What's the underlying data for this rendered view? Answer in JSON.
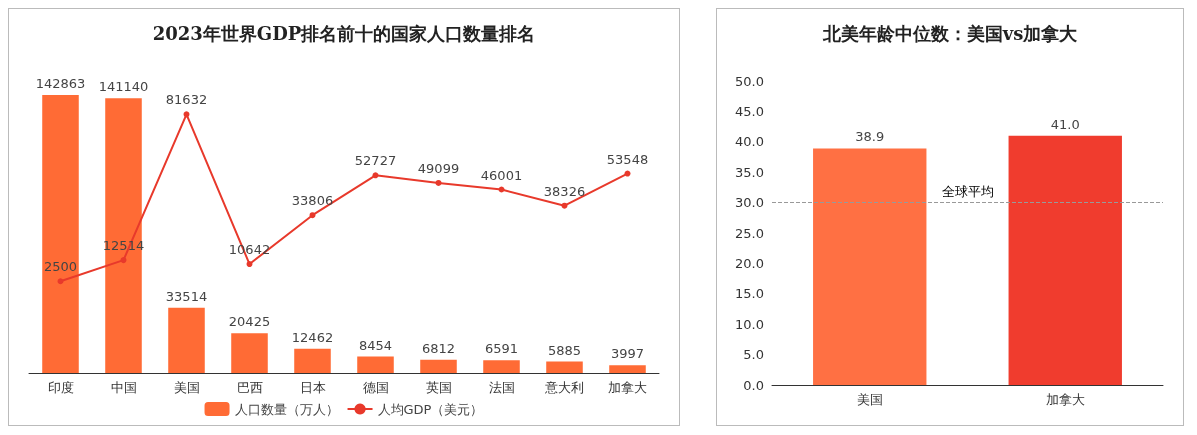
{
  "chart_data": [
    {
      "type": "bar",
      "title": "2023年世界GDP排名前十的国家人口数量排名",
      "categories": [
        "印度",
        "中国",
        "美国",
        "巴西",
        "日本",
        "德国",
        "英国",
        "法国",
        "意大利",
        "加拿大"
      ],
      "series": [
        {
          "name": "人口数量（万人）",
          "color": "#ff6b35",
          "values": [
            142863,
            141140,
            33514,
            20425,
            12462,
            8454,
            6812,
            6591,
            5885,
            3997
          ]
        },
        {
          "name": "人均GDP（美元）",
          "type": "line",
          "axis": "y2",
          "color": "#e8392b",
          "values": [
            2500,
            12514,
            81632,
            10642,
            33806,
            52727,
            49099,
            46001,
            38326,
            53548
          ]
        }
      ],
      "data_labels": true,
      "legend": "bottom",
      "marker": "circle",
      "tick_labels": "x",
      "grid": false
    },
    {
      "type": "bar",
      "title": "北美年龄中位数：美国vs加拿大",
      "categories": [
        "美国",
        "加拿大"
      ],
      "values": [
        38.9,
        41.0
      ],
      "colors": [
        "#ff7043",
        "#f03c2e"
      ],
      "value_labels": [
        "38.9",
        "41.0"
      ],
      "ylim": [
        0,
        50
      ],
      "yticks": [
        {
          "value": 0,
          "label": "0.0"
        },
        {
          "value": 5,
          "label": "5.0"
        },
        {
          "value": 10,
          "label": "10.0"
        },
        {
          "value": 15,
          "label": "15.0"
        },
        {
          "value": 20,
          "label": "20.0"
        },
        {
          "value": 25,
          "label": "25.0"
        },
        {
          "value": 30,
          "label": "30.0"
        },
        {
          "value": 35,
          "label": "35.0"
        },
        {
          "value": 40,
          "label": "40.0"
        },
        {
          "value": 45,
          "label": "45.0"
        },
        {
          "value": 50,
          "label": "50.0"
        }
      ],
      "ref_lines": [
        {
          "axis": "y",
          "value": 30,
          "label": "全球平均",
          "color": "#999999",
          "line_style": "dashed"
        }
      ],
      "grid": false
    }
  ]
}
